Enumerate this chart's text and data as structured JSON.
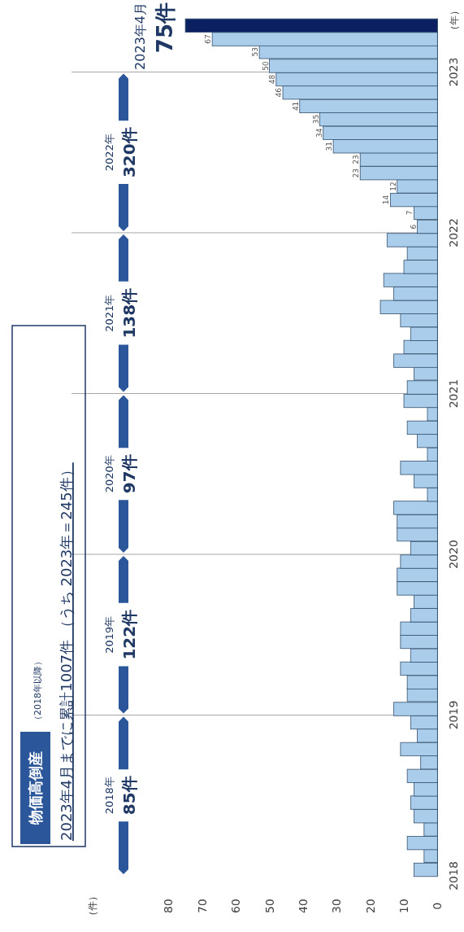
{
  "chart_data": {
    "type": "bar",
    "orientation": "horizontal",
    "title": "物価高倒産",
    "subtitle": "（2018年以降）",
    "ylabel": "（年）",
    "annotations": [
      "2023年4月までに累計1007件 （うち 2023年＝245件）",
      {
        "text": "2023年4月\n75件",
        "x": 75,
        "y": "2023-04-15"
      },
      "2018年\n85件",
      "2019年\n122件",
      "2020年\n97件",
      "2021年\n138件",
      "2022年\n320件",
      "（件）"
    ],
    "x": [
      "2018-01-15",
      "2018-02-15",
      "2018-03-15",
      "2018-04-15",
      "2018-05-15",
      "2018-06-15",
      "2018-07-15",
      "2018-08-15",
      "2018-09-15",
      "2018-10-15",
      "2018-11-15",
      "2018-12-15",
      "2019-01-15",
      "2019-02-15",
      "2019-03-15",
      "2019-04-15",
      "2019-05-15",
      "2019-06-15",
      "2019-07-15",
      "2019-08-15",
      "2019-09-15",
      "2019-10-15",
      "2019-11-15",
      "2019-12-15",
      "2020-01-15",
      "2020-02-15",
      "2020-03-15",
      "2020-04-15",
      "2020-05-15",
      "2020-06-15",
      "2020-07-15",
      "2020-08-15",
      "2020-09-15",
      "2020-10-15",
      "2020-11-15",
      "2020-12-15",
      "2021-01-15",
      "2021-02-15",
      "2021-03-15",
      "2021-04-15",
      "2021-05-15",
      "2021-06-15",
      "2021-07-15",
      "2021-08-15",
      "2021-09-15",
      "2021-10-15",
      "2021-11-15",
      "2021-12-15",
      "2022-01-15",
      "2022-02-15",
      "2022-03-15",
      "2022-04-15",
      "2022-05-15",
      "2022-06-15",
      "2022-07-15",
      "2022-08-15",
      "2022-09-15",
      "2022-10-15",
      "2022-11-15",
      "2022-12-15",
      "2023-01-15",
      "2023-02-15",
      "2023-03-15",
      "2023-04-15"
    ],
    "values": [
      7,
      4,
      9,
      4,
      7,
      8,
      7,
      9,
      5,
      11,
      6,
      8,
      13,
      9,
      9,
      11,
      8,
      11,
      11,
      8,
      7,
      12,
      12,
      11,
      8,
      12,
      12,
      13,
      3,
      7,
      11,
      3,
      6,
      9,
      3,
      10,
      9,
      7,
      13,
      10,
      8,
      11,
      17,
      13,
      16,
      10,
      9,
      15,
      6,
      7,
      14,
      12,
      23,
      23,
      31,
      34,
      35,
      41,
      46,
      48,
      50,
      53,
      67,
      75
    ],
    "value_labels": [
      null,
      null,
      null,
      null,
      null,
      null,
      null,
      null,
      null,
      null,
      null,
      null,
      null,
      null,
      null,
      null,
      null,
      null,
      null,
      null,
      null,
      null,
      null,
      null,
      null,
      null,
      null,
      null,
      null,
      null,
      null,
      null,
      null,
      null,
      null,
      null,
      null,
      null,
      null,
      null,
      null,
      null,
      null,
      null,
      null,
      null,
      null,
      null,
      "6",
      "7",
      "14",
      "12",
      "23",
      "23",
      "31",
      "34",
      "35",
      "41",
      "46",
      "48",
      "50",
      "53",
      "67",
      null
    ],
    "colors": [
      "#a9cdeb",
      "#a9cdeb",
      "#a9cdeb",
      "#a9cdeb",
      "#a9cdeb",
      "#a9cdeb",
      "#a9cdeb",
      "#a9cdeb",
      "#a9cdeb",
      "#a9cdeb",
      "#a9cdeb",
      "#a9cdeb",
      "#a9cdeb",
      "#a9cdeb",
      "#a9cdeb",
      "#a9cdeb",
      "#a9cdeb",
      "#a9cdeb",
      "#a9cdeb",
      "#a9cdeb",
      "#a9cdeb",
      "#a9cdeb",
      "#a9cdeb",
      "#a9cdeb",
      "#a9cdeb",
      "#a9cdeb",
      "#a9cdeb",
      "#a9cdeb",
      "#a9cdeb",
      "#a9cdeb",
      "#a9cdeb",
      "#a9cdeb",
      "#a9cdeb",
      "#a9cdeb",
      "#a9cdeb",
      "#a9cdeb",
      "#a9cdeb",
      "#a9cdeb",
      "#a9cdeb",
      "#a9cdeb",
      "#a9cdeb",
      "#a9cdeb",
      "#a9cdeb",
      "#a9cdeb",
      "#a9cdeb",
      "#a9cdeb",
      "#a9cdeb",
      "#a9cdeb",
      "#a9cdeb",
      "#a9cdeb",
      "#a9cdeb",
      "#a9cdeb",
      "#a9cdeb",
      "#a9cdeb",
      "#a9cdeb",
      "#a9cdeb",
      "#a9cdeb",
      "#a9cdeb",
      "#a9cdeb",
      "#a9cdeb",
      "#a9cdeb",
      "#a9cdeb",
      "#a9cdeb",
      "#0b2060"
    ],
    "ylim": [
      "2018-01-01",
      "2023-05-01"
    ],
    "yticks": [
      {
        "value": "2018-01-01",
        "label": "2018"
      },
      {
        "value": "2019-01-01",
        "label": "2019"
      },
      {
        "value": "2020-01-01",
        "label": "2020"
      },
      {
        "value": "2021-01-01",
        "label": "2021"
      },
      {
        "value": "2022-01-01",
        "label": "2022"
      },
      {
        "value": "2023-01-01",
        "label": "2023"
      }
    ],
    "xlim": [
      80,
      0
    ],
    "xticks": [
      0,
      10,
      20,
      30,
      40,
      50,
      60,
      70,
      80
    ],
    "ref_lines": [
      {
        "axis": "y",
        "value": "2019-01-01",
        "color": "#a6a6a6"
      },
      {
        "axis": "y",
        "value": "2020-01-01",
        "color": "#a6a6a6"
      },
      {
        "axis": "y",
        "value": "2021-01-01",
        "color": "#a6a6a6"
      },
      {
        "axis": "y",
        "value": "2022-01-01",
        "color": "#a6a6a6"
      },
      {
        "axis": "y",
        "value": "2023-01-01",
        "color": "#a6a6a6"
      }
    ]
  }
}
